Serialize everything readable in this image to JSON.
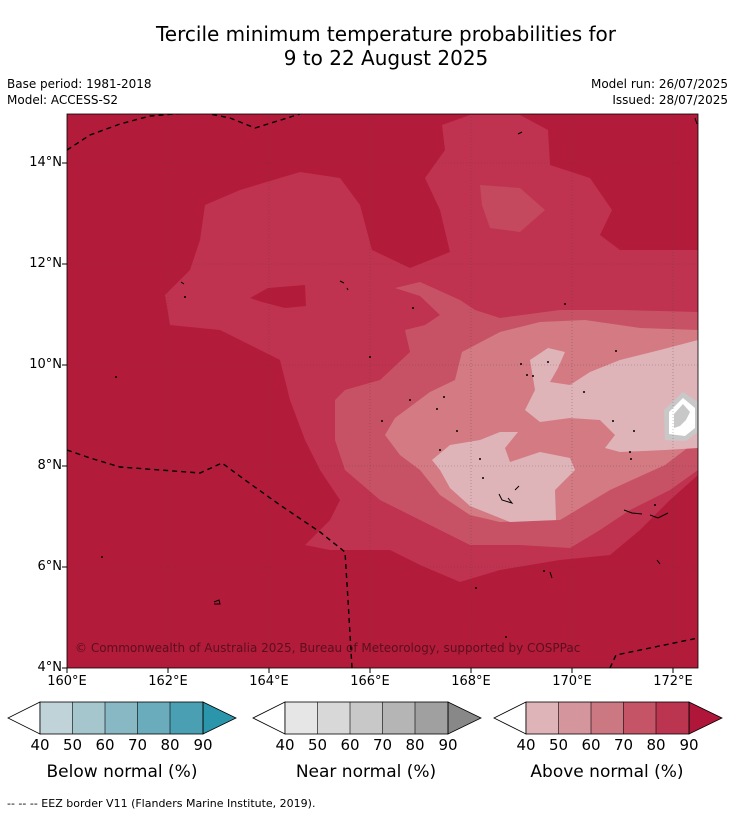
{
  "header": {
    "title_line1": "Tercile minimum temperature probabilities for",
    "title_line2": "9 to 22 August 2025",
    "base_period": "Base period: 1981-2018",
    "model": "Model: ACCESS-S2",
    "model_run": "Model run: 26/07/2025",
    "issued": "Issued: 28/07/2025"
  },
  "map": {
    "latitudes": [
      "14°N",
      "12°N",
      "10°N",
      "8°N",
      "6°N",
      "4°N"
    ],
    "longitudes": [
      "160°E",
      "162°E",
      "164°E",
      "166°E",
      "168°E",
      "170°E",
      "172°E"
    ],
    "copyright": "© Commonwealth of Australia 2025, Bureau of Meteorology, supported by COSPPac",
    "colors": {
      "above_90": "#b31b3a",
      "above_80": "#bf3350",
      "above_70": "#c85265",
      "above_60": "#d47a83",
      "above_50": "#dfb4b9",
      "near_normal_grey": "#c8c8c8"
    }
  },
  "legends": [
    {
      "label": "Below normal (%)",
      "ticks": [
        "40",
        "50",
        "60",
        "70",
        "80",
        "90"
      ],
      "colors": [
        "#c0d3d9",
        "#a5c6cc",
        "#88b8c3",
        "#6aacbc",
        "#4a9fb2",
        "#2b96ab"
      ]
    },
    {
      "label": "Near normal (%)",
      "ticks": [
        "40",
        "50",
        "60",
        "70",
        "80",
        "90"
      ],
      "colors": [
        "#e6e6e6",
        "#d8d8d8",
        "#c8c8c8",
        "#b5b5b5",
        "#a0a0a0",
        "#888888"
      ]
    },
    {
      "label": "Above normal (%)",
      "ticks": [
        "40",
        "50",
        "60",
        "70",
        "80",
        "90"
      ],
      "colors": [
        "#dfb4b9",
        "#d4959c",
        "#cc7883",
        "#c55566",
        "#bc3550",
        "#b0163a"
      ]
    }
  ],
  "footnote": "--  --  -- EEZ border V11 (Flanders Marine Institute, 2019)."
}
